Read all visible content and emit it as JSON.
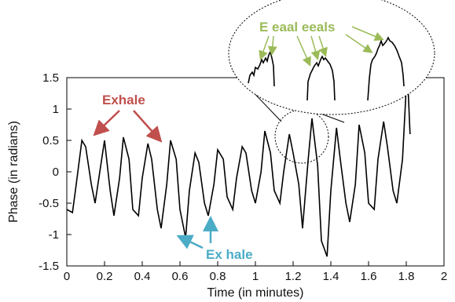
{
  "chart_data": {
    "type": "line",
    "xlabel": "Time (in minutes)",
    "ylabel": "Phase (in radians)",
    "xlim": [
      0,
      2
    ],
    "ylim": [
      -1.5,
      1.5
    ],
    "x_ticks": [
      "0",
      "0.2",
      "0.4",
      "0.6",
      "0.8",
      "1",
      "1.2",
      "1.4",
      "1.6",
      "1.8",
      "2"
    ],
    "y_ticks": [
      "1.5",
      "1",
      "0.5",
      "0",
      "-0.5",
      "-1",
      "-1.5"
    ],
    "grid": false,
    "series": [
      {
        "x": [
          0.0,
          0.03,
          0.05,
          0.08,
          0.1,
          0.13,
          0.15,
          0.18,
          0.2,
          0.23,
          0.25,
          0.28,
          0.3,
          0.33,
          0.35,
          0.38,
          0.4,
          0.43,
          0.45,
          0.48,
          0.5,
          0.53,
          0.55,
          0.58,
          0.6,
          0.63,
          0.65,
          0.68,
          0.7,
          0.73,
          0.75,
          0.78,
          0.8,
          0.83,
          0.85,
          0.88,
          0.9,
          0.93,
          0.95,
          0.98,
          1.0,
          1.03,
          1.05,
          1.08,
          1.1,
          1.13,
          1.15,
          1.18,
          1.2,
          1.23,
          1.25,
          1.28,
          1.3,
          1.33,
          1.35,
          1.38,
          1.4,
          1.43,
          1.45,
          1.48,
          1.5,
          1.53,
          1.55,
          1.58,
          1.6,
          1.63,
          1.65,
          1.68,
          1.7,
          1.73,
          1.75,
          1.78,
          1.8,
          1.81,
          1.82
        ],
        "y": [
          -0.6,
          -0.65,
          -0.2,
          0.5,
          0.4,
          -0.2,
          -0.5,
          0.1,
          0.5,
          -0.3,
          -0.7,
          -0.1,
          0.55,
          0.2,
          -0.6,
          -0.7,
          -0.1,
          0.45,
          0.2,
          -0.6,
          -0.9,
          -0.2,
          0.5,
          0.2,
          -0.6,
          -1.05,
          -0.3,
          0.3,
          0.15,
          -0.5,
          -0.7,
          -0.2,
          0.35,
          0.2,
          -0.4,
          -0.6,
          -0.1,
          0.4,
          0.3,
          -0.3,
          -0.5,
          0.0,
          0.65,
          0.3,
          -0.3,
          -0.5,
          0.0,
          0.6,
          0.3,
          -0.2,
          -0.9,
          0.2,
          0.85,
          0.1,
          -1.1,
          -1.35,
          -0.3,
          0.7,
          0.2,
          -0.5,
          -0.8,
          -0.2,
          0.75,
          0.3,
          -0.5,
          -0.6,
          0.2,
          0.8,
          0.4,
          -0.3,
          -0.5,
          0.2,
          1.35,
          1.3,
          0.6
        ]
      }
    ],
    "annotations": [
      {
        "text": "Exhale",
        "color": "#c0504d"
      },
      {
        "text": "Ex hale",
        "color": "#4bacc6"
      },
      {
        "text": "E eaal eeals",
        "color": "#9bbb59"
      }
    ]
  }
}
